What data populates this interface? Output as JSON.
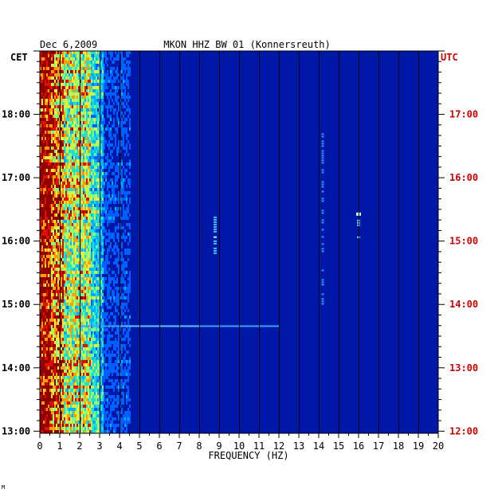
{
  "chart_data": {
    "type": "heatmap",
    "title": "MKON HHZ BW 01 (Konnersreuth)",
    "date": "Dec 6,2009",
    "left_tz": "CET",
    "right_tz": "UTC",
    "xlabel": "FREQUENCY (HZ)",
    "xlim": [
      0,
      20
    ],
    "x_ticks": [
      "0",
      "1",
      "2",
      "3",
      "4",
      "5",
      "6",
      "7",
      "8",
      "9",
      "10",
      "11",
      "12",
      "13",
      "14",
      "15",
      "16",
      "17",
      "18",
      "19",
      "20"
    ],
    "time_range_cet": [
      "12:58",
      "19:00"
    ],
    "left_ticks": [
      {
        "label": "13:00",
        "value": 13.0
      },
      {
        "label": "14:00",
        "value": 14.0
      },
      {
        "label": "15:00",
        "value": 15.0
      },
      {
        "label": "16:00",
        "value": 16.0
      },
      {
        "label": "17:00",
        "value": 17.0
      },
      {
        "label": "18:00",
        "value": 18.0
      }
    ],
    "right_ticks": [
      {
        "label": "12:00",
        "value": 13.0
      },
      {
        "label": "13:00",
        "value": 14.0
      },
      {
        "label": "14:00",
        "value": 15.0
      },
      {
        "label": "15:00",
        "value": 16.0
      },
      {
        "label": "16:00",
        "value": 17.0
      },
      {
        "label": "17:00",
        "value": 18.0
      }
    ],
    "grid": "vertical lines at each 1 Hz",
    "colorscale": [
      "#00008b",
      "#0020d0",
      "#0060ff",
      "#00b0ff",
      "#20e0d0",
      "#80ff80",
      "#e0f040",
      "#ffa000",
      "#e01000",
      "#900000"
    ],
    "features": [
      {
        "freq_hz": [
          0,
          3.0
        ],
        "description": "broadband high energy"
      },
      {
        "freq_hz": 8.8,
        "time_cet": "15:50-16:30"
      },
      {
        "freq_hz": 14.2,
        "time_cet": "15:00-17:40"
      },
      {
        "freq_hz": 16.0,
        "time_cet": "16:00-16:30"
      },
      {
        "time_cet": "14:40",
        "description": "horizontal band to ~12 Hz"
      }
    ]
  },
  "footer_mark": "M"
}
